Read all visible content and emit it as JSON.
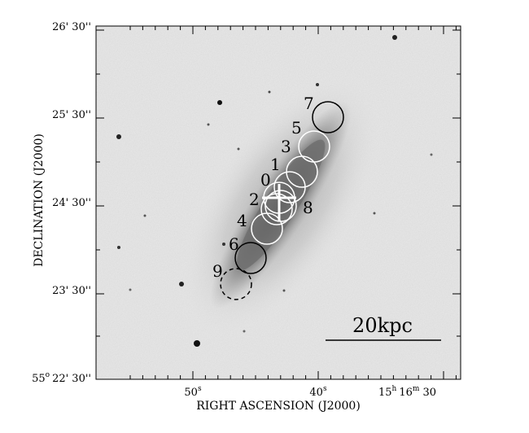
{
  "axes": {
    "xlabel": "RIGHT ASCENSION (J2000)",
    "ylabel": "DECLINATION (J2000)",
    "ra_ticks": [
      {
        "label": "50",
        "sup": "s"
      },
      {
        "label": "40",
        "sup": "s"
      },
      {
        "label": "15",
        "sup": "h",
        "label2": "16",
        "sup2": "m",
        "label3": "30"
      }
    ],
    "dec_ticks": [
      "26' 30''",
      "25' 30''",
      "24' 30''",
      "23' 30''"
    ],
    "dec_corner": {
      "deg": "55",
      "sup": "o",
      "rest": "22' 30''"
    }
  },
  "scalebar": {
    "label": "20kpc"
  },
  "apertures": [
    {
      "id": "0",
      "label": "0",
      "color": "#ffffff",
      "style": "solid"
    },
    {
      "id": "1",
      "label": "1",
      "color": "#ffffff",
      "style": "solid"
    },
    {
      "id": "2",
      "label": "2",
      "color": "#ffffff",
      "style": "solid"
    },
    {
      "id": "3",
      "label": "3",
      "color": "#ffffff",
      "style": "solid"
    },
    {
      "id": "4",
      "label": "4",
      "color": "#ffffff",
      "style": "solid"
    },
    {
      "id": "5",
      "label": "5",
      "color": "#ffffff",
      "style": "solid"
    },
    {
      "id": "6",
      "label": "6",
      "color": "#000000",
      "style": "solid"
    },
    {
      "id": "7",
      "label": "7",
      "color": "#000000",
      "style": "solid"
    },
    {
      "id": "8",
      "label": "8",
      "color": "#ffffff",
      "style": "solid"
    },
    {
      "id": "9",
      "label": "9",
      "color": "#000000",
      "style": "dashed"
    }
  ],
  "colors": {
    "background": "#e9e9e9",
    "galaxy": "#7a7a7a",
    "frame": "#000000"
  }
}
